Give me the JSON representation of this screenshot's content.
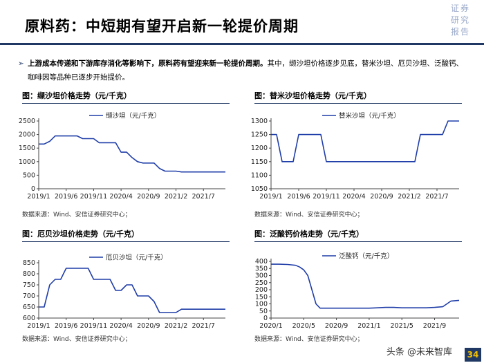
{
  "header": {
    "title": "原料药：中短期有望开启新一轮提价周期",
    "brand": [
      "证券",
      "研究",
      "报告"
    ]
  },
  "bullet": {
    "marker": "➢",
    "bold_text": "上游成本传递和下游库存消化等影响下，原料药有望迎来新一轮提价周期。",
    "text": "其中，缬沙坦价格逐步见底，替米沙坦、厄贝沙坦、泛酸钙、咖啡因等品种已逐步开始提价。"
  },
  "colors": {
    "line": "#1f3da8",
    "accent": "#1f3864"
  },
  "chart_data": [
    {
      "id": "valsartan",
      "type": "line",
      "title": "图：缬沙坦价格走势（元/千克）",
      "legend": "缬沙坦（元/千克）",
      "legend_position": "top-center",
      "source": "数据来源：Wind、安信证券研究中心；",
      "ylim": [
        0,
        2500
      ],
      "yticks": [
        "0",
        "500",
        "1000",
        "1500",
        "2000",
        "2500"
      ],
      "xlim": [
        0,
        34
      ],
      "xticks": [
        {
          "t": 0,
          "label": "2019/1"
        },
        {
          "t": 5,
          "label": "2019/6"
        },
        {
          "t": 10,
          "label": "2019/11"
        },
        {
          "t": 15,
          "label": "2020/4"
        },
        {
          "t": 20,
          "label": "2020/9"
        },
        {
          "t": 25,
          "label": "2021/2"
        },
        {
          "t": 30,
          "label": "2021/7"
        }
      ],
      "x": [
        0,
        1,
        2,
        3,
        4,
        5,
        6,
        7,
        8,
        9,
        10,
        11,
        12,
        13,
        14,
        15,
        16,
        17,
        18,
        19,
        20,
        21,
        22,
        23,
        24,
        25,
        26,
        27,
        28,
        29,
        30,
        31,
        32,
        33,
        34
      ],
      "values": [
        1650,
        1650,
        1750,
        1950,
        1950,
        1950,
        1950,
        1950,
        1850,
        1850,
        1850,
        1700,
        1700,
        1700,
        1700,
        1350,
        1350,
        1150,
        1000,
        950,
        950,
        950,
        750,
        650,
        650,
        650,
        620,
        620,
        620,
        620,
        620,
        620,
        620,
        620,
        620
      ]
    },
    {
      "id": "telmisartan",
      "type": "line",
      "title": "图：替米沙坦价格走势（元/千克）",
      "legend": "替米沙坦（元/千克）",
      "legend_position": "top-center",
      "source": "数据来源：Wind、安信证券研究中心；",
      "ylim": [
        1050,
        1300
      ],
      "yticks": [
        "1050",
        "1100",
        "1150",
        "1200",
        "1250",
        "1300"
      ],
      "xlim": [
        0,
        34
      ],
      "xticks": [
        {
          "t": 0,
          "label": "2019/1"
        },
        {
          "t": 5,
          "label": "2019/6"
        },
        {
          "t": 10,
          "label": "2019/11"
        },
        {
          "t": 15,
          "label": "2020/4"
        },
        {
          "t": 20,
          "label": "2020/9"
        },
        {
          "t": 25,
          "label": "2021/2"
        },
        {
          "t": 30,
          "label": "2021/7"
        }
      ],
      "x": [
        0,
        1,
        2,
        3,
        4,
        5,
        6,
        7,
        8,
        9,
        10,
        11,
        12,
        13,
        14,
        15,
        16,
        17,
        18,
        19,
        20,
        21,
        22,
        23,
        24,
        25,
        26,
        27,
        28,
        29,
        30,
        31,
        32,
        33,
        34
      ],
      "values": [
        1250,
        1250,
        1150,
        1150,
        1150,
        1250,
        1250,
        1250,
        1250,
        1250,
        1150,
        1150,
        1150,
        1150,
        1150,
        1150,
        1150,
        1150,
        1150,
        1150,
        1150,
        1150,
        1150,
        1150,
        1150,
        1150,
        1150,
        1250,
        1250,
        1250,
        1250,
        1250,
        1300,
        1300,
        1300
      ]
    },
    {
      "id": "irbesartan",
      "type": "line",
      "title": "图：厄贝沙坦价格走势（元/千克）",
      "legend": "厄贝沙坦（元/千克）",
      "legend_position": "top-center",
      "source": "数据来源：Wind、安信证券研究中心；",
      "ylim": [
        600,
        850
      ],
      "yticks": [
        "600",
        "650",
        "700",
        "750",
        "800",
        "850"
      ],
      "xlim": [
        0,
        34
      ],
      "xticks": [
        {
          "t": 0,
          "label": "2019/1"
        },
        {
          "t": 5,
          "label": "2019/6"
        },
        {
          "t": 10,
          "label": "2019/11"
        },
        {
          "t": 15,
          "label": "2020/4"
        },
        {
          "t": 20,
          "label": "2020/9"
        },
        {
          "t": 25,
          "label": "2021/2"
        },
        {
          "t": 30,
          "label": "2021/7"
        }
      ],
      "x": [
        0,
        1,
        2,
        3,
        4,
        5,
        6,
        7,
        8,
        9,
        10,
        11,
        12,
        13,
        14,
        15,
        16,
        17,
        18,
        19,
        20,
        21,
        22,
        23,
        24,
        25,
        26,
        27,
        28,
        29,
        30,
        31,
        32,
        33,
        34
      ],
      "values": [
        650,
        650,
        750,
        775,
        775,
        825,
        825,
        825,
        825,
        825,
        775,
        775,
        775,
        775,
        725,
        725,
        750,
        750,
        700,
        700,
        700,
        675,
        625,
        625,
        625,
        625,
        640,
        640,
        640,
        640,
        640,
        640,
        640,
        640,
        640
      ]
    },
    {
      "id": "calcium_pantothenate",
      "type": "line",
      "title": "图：泛酸钙价格走势（元/千克）",
      "legend": "泛酸钙（元/千克）",
      "legend_position": "top-center",
      "source": "数据来源：Wind、安信证券研究中心；",
      "ylim": [
        0,
        400
      ],
      "yticks": [
        "0",
        "50",
        "100",
        "150",
        "200",
        "250",
        "300",
        "350",
        "400"
      ],
      "xlim": [
        0,
        23
      ],
      "xticks": [
        {
          "t": 0,
          "label": "2020/1"
        },
        {
          "t": 4,
          "label": "2020/5"
        },
        {
          "t": 8,
          "label": "2020/9"
        },
        {
          "t": 12,
          "label": "2021/1"
        },
        {
          "t": 16,
          "label": "2021/5"
        },
        {
          "t": 20,
          "label": "2021/9"
        }
      ],
      "x": [
        0,
        1,
        2,
        3,
        3.5,
        4,
        4.5,
        5,
        5.5,
        6,
        7,
        8,
        9,
        10,
        11,
        12,
        13,
        14,
        15,
        16,
        17,
        18,
        19,
        20,
        21,
        21.5,
        22,
        23
      ],
      "values": [
        380,
        380,
        378,
        372,
        360,
        340,
        300,
        200,
        100,
        70,
        70,
        70,
        70,
        70,
        70,
        70,
        72,
        75,
        75,
        72,
        72,
        72,
        72,
        75,
        80,
        100,
        120,
        125
      ]
    }
  ],
  "footer": {
    "watermark": "头条 @未来智库",
    "page": "34"
  }
}
